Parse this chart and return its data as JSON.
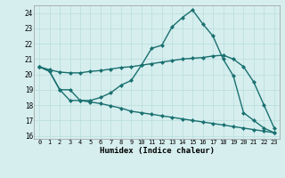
{
  "line1_x": [
    0,
    1,
    2,
    3,
    4,
    5,
    6,
    7,
    8,
    9,
    10,
    11,
    12,
    13,
    14,
    15,
    16,
    17,
    18,
    19,
    20,
    21,
    22,
    23
  ],
  "line1_y": [
    20.5,
    20.2,
    19.0,
    19.0,
    18.3,
    18.3,
    18.5,
    18.8,
    19.3,
    19.6,
    20.6,
    21.7,
    21.9,
    23.1,
    23.7,
    24.2,
    23.3,
    22.5,
    21.0,
    19.9,
    17.5,
    17.0,
    16.5,
    16.2
  ],
  "line1_markers": [
    0,
    1,
    2,
    3,
    4,
    5,
    6,
    7,
    8,
    9,
    10,
    11,
    12,
    13,
    14,
    15,
    16,
    17,
    18,
    19,
    20,
    21,
    22,
    23
  ],
  "line2_x": [
    0,
    1,
    2,
    3,
    4,
    5,
    6,
    7,
    8,
    9,
    10,
    11,
    12,
    13,
    14,
    15,
    16,
    17,
    18,
    19,
    20,
    21,
    22,
    23
  ],
  "line2_y": [
    20.5,
    20.3,
    20.15,
    20.1,
    20.1,
    20.2,
    20.25,
    20.35,
    20.45,
    20.5,
    20.6,
    20.7,
    20.8,
    20.9,
    21.0,
    21.05,
    21.1,
    21.2,
    21.25,
    21.0,
    20.5,
    19.5,
    18.0,
    16.5
  ],
  "line3_x": [
    0,
    1,
    2,
    3,
    4,
    5,
    6,
    7,
    8,
    9,
    10,
    11,
    12,
    13,
    14,
    15,
    16,
    17,
    18,
    19,
    20,
    21,
    22,
    23
  ],
  "line3_y": [
    20.5,
    20.2,
    19.0,
    18.3,
    18.3,
    18.2,
    18.1,
    17.95,
    17.8,
    17.6,
    17.5,
    17.4,
    17.3,
    17.2,
    17.1,
    17.0,
    16.9,
    16.8,
    16.7,
    16.6,
    16.5,
    16.4,
    16.3,
    16.2
  ],
  "color": "#1a7070",
  "bg_color": "#d6eeee",
  "grid_color": "#b8dcdc",
  "xlabel": "Humidex (Indice chaleur)",
  "ylim": [
    15.8,
    24.5
  ],
  "xlim": [
    -0.5,
    23.5
  ],
  "yticks": [
    16,
    17,
    18,
    19,
    20,
    21,
    22,
    23,
    24
  ],
  "xticks": [
    0,
    1,
    2,
    3,
    4,
    5,
    6,
    7,
    8,
    9,
    10,
    11,
    12,
    13,
    14,
    15,
    16,
    17,
    18,
    19,
    20,
    21,
    22,
    23
  ],
  "marker": "D",
  "markersize": 2.0,
  "linewidth": 1.0
}
